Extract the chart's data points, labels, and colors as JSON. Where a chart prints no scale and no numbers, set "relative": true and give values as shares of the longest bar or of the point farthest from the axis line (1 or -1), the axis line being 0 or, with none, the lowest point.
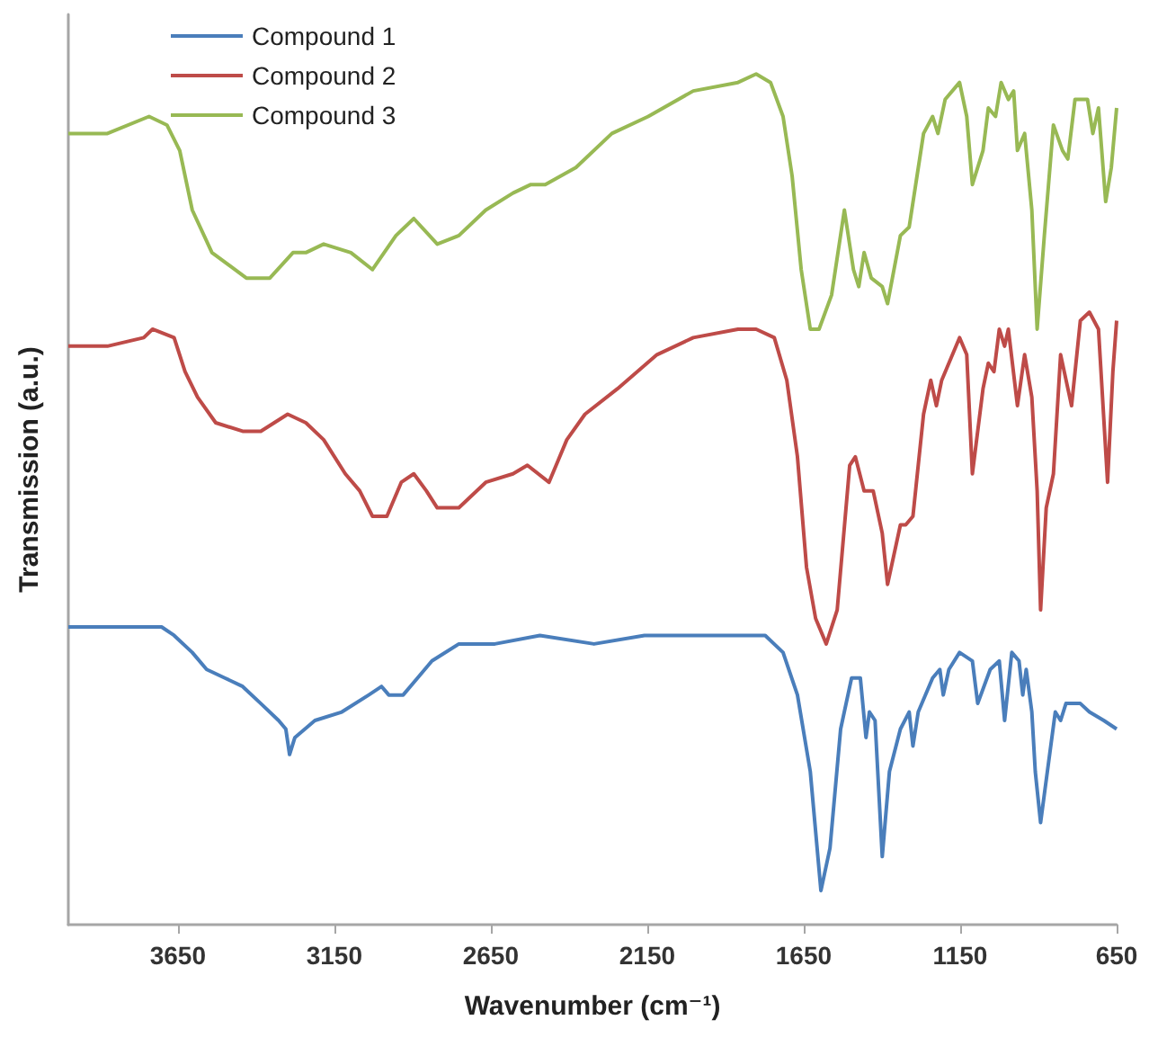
{
  "chart_data": {
    "type": "line",
    "xlabel": "Wavenumber (cm⁻¹)",
    "ylabel": "Transmission (a.u.)",
    "relative": true,
    "legend": "top left",
    "grid": false,
    "xlim": [
      4000,
      650
    ],
    "xticks": [
      3650,
      3150,
      2650,
      2150,
      1650,
      1150,
      650
    ],
    "series": [
      {
        "name": "Compound 1",
        "color": "#4a7ebb",
        "x": [
          4000,
          3702,
          3662,
          3604,
          3558,
          3500,
          3443,
          3385,
          3328,
          3305,
          3293,
          3276,
          3212,
          3126,
          3040,
          2999,
          2976,
          2930,
          2884,
          2838,
          2752,
          2637,
          2493,
          2320,
          2159,
          2032,
          1860,
          1773,
          1716,
          1670,
          1629,
          1595,
          1566,
          1532,
          1497,
          1469,
          1451,
          1440,
          1422,
          1399,
          1376,
          1341,
          1313,
          1301,
          1284,
          1238,
          1215,
          1204,
          1186,
          1152,
          1111,
          1094,
          1054,
          1025,
          1008,
          985,
          962,
          950,
          939,
          921,
          910,
          893,
          875,
          846,
          829,
          812,
          766,
          737,
          691,
          650
        ],
        "values": [
          0.35,
          0.35,
          0.34,
          0.32,
          0.3,
          0.29,
          0.28,
          0.26,
          0.24,
          0.23,
          0.2,
          0.22,
          0.24,
          0.25,
          0.27,
          0.28,
          0.27,
          0.27,
          0.29,
          0.31,
          0.33,
          0.33,
          0.34,
          0.33,
          0.34,
          0.34,
          0.34,
          0.34,
          0.32,
          0.27,
          0.18,
          0.04,
          0.09,
          0.23,
          0.29,
          0.29,
          0.22,
          0.25,
          0.24,
          0.08,
          0.18,
          0.23,
          0.25,
          0.21,
          0.25,
          0.29,
          0.3,
          0.27,
          0.3,
          0.32,
          0.31,
          0.26,
          0.3,
          0.31,
          0.24,
          0.32,
          0.31,
          0.27,
          0.3,
          0.25,
          0.18,
          0.12,
          0.17,
          0.25,
          0.24,
          0.26,
          0.26,
          0.25,
          0.24,
          0.23
        ]
      },
      {
        "name": "Compound 2",
        "color": "#be4b48",
        "x": [
          4000,
          3875,
          3759,
          3731,
          3662,
          3627,
          3587,
          3529,
          3443,
          3385,
          3299,
          3241,
          3184,
          3115,
          3069,
          3028,
          2982,
          2936,
          2896,
          2856,
          2821,
          2752,
          2666,
          2579,
          2533,
          2464,
          2407,
          2349,
          2245,
          2119,
          2003,
          1860,
          1802,
          1744,
          1704,
          1670,
          1641,
          1612,
          1578,
          1543,
          1503,
          1485,
          1457,
          1428,
          1399,
          1382,
          1341,
          1324,
          1301,
          1267,
          1244,
          1226,
          1209,
          1152,
          1129,
          1111,
          1077,
          1060,
          1042,
          1025,
          1008,
          996,
          967,
          944,
          921,
          904,
          893,
          875,
          852,
          829,
          794,
          766,
          737,
          708,
          679,
          662,
          650
        ],
        "values": [
          0.68,
          0.68,
          0.69,
          0.7,
          0.69,
          0.65,
          0.62,
          0.59,
          0.58,
          0.58,
          0.6,
          0.59,
          0.57,
          0.53,
          0.51,
          0.48,
          0.48,
          0.52,
          0.53,
          0.51,
          0.49,
          0.49,
          0.52,
          0.53,
          0.54,
          0.52,
          0.57,
          0.6,
          0.63,
          0.67,
          0.69,
          0.7,
          0.7,
          0.69,
          0.64,
          0.55,
          0.42,
          0.36,
          0.33,
          0.37,
          0.54,
          0.55,
          0.51,
          0.51,
          0.46,
          0.4,
          0.47,
          0.47,
          0.48,
          0.6,
          0.64,
          0.61,
          0.64,
          0.69,
          0.67,
          0.53,
          0.63,
          0.66,
          0.65,
          0.7,
          0.68,
          0.7,
          0.61,
          0.67,
          0.62,
          0.51,
          0.37,
          0.49,
          0.53,
          0.67,
          0.61,
          0.71,
          0.72,
          0.7,
          0.52,
          0.65,
          0.71
        ]
      },
      {
        "name": "Compound 3",
        "color": "#98b954",
        "x": [
          4000,
          3875,
          3742,
          3685,
          3644,
          3604,
          3541,
          3431,
          3356,
          3282,
          3241,
          3184,
          3097,
          3028,
          2953,
          2896,
          2821,
          2752,
          2666,
          2579,
          2522,
          2476,
          2378,
          2263,
          2147,
          2003,
          1860,
          1802,
          1756,
          1716,
          1687,
          1658,
          1629,
          1601,
          1561,
          1520,
          1491,
          1474,
          1457,
          1434,
          1399,
          1382,
          1341,
          1313,
          1267,
          1238,
          1221,
          1198,
          1152,
          1129,
          1111,
          1077,
          1060,
          1037,
          1019,
          996,
          979,
          967,
          944,
          921,
          904,
          881,
          852,
          823,
          806,
          783,
          743,
          726,
          708,
          685,
          667,
          650
        ],
        "values": [
          0.93,
          0.93,
          0.95,
          0.94,
          0.91,
          0.84,
          0.79,
          0.76,
          0.76,
          0.79,
          0.79,
          0.8,
          0.79,
          0.77,
          0.81,
          0.83,
          0.8,
          0.81,
          0.84,
          0.86,
          0.87,
          0.87,
          0.89,
          0.93,
          0.95,
          0.98,
          0.99,
          1.0,
          0.99,
          0.95,
          0.88,
          0.77,
          0.7,
          0.7,
          0.74,
          0.84,
          0.77,
          0.75,
          0.79,
          0.76,
          0.75,
          0.73,
          0.81,
          0.82,
          0.93,
          0.95,
          0.93,
          0.97,
          0.99,
          0.95,
          0.87,
          0.91,
          0.96,
          0.95,
          0.99,
          0.97,
          0.98,
          0.91,
          0.93,
          0.84,
          0.7,
          0.81,
          0.94,
          0.91,
          0.9,
          0.97,
          0.97,
          0.93,
          0.96,
          0.85,
          0.89,
          0.96
        ]
      }
    ]
  }
}
